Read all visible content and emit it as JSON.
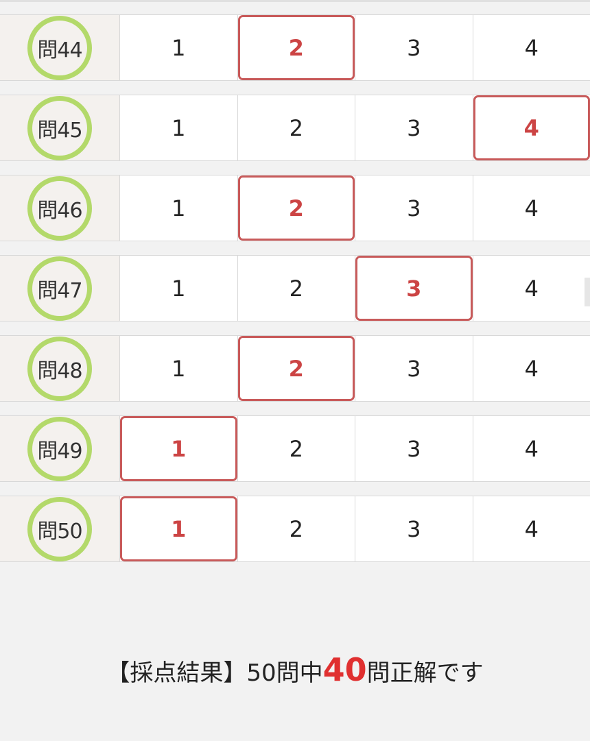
{
  "questions": [
    {
      "label": "問44",
      "options": [
        "1",
        "2",
        "3",
        "4"
      ],
      "selected": 2
    },
    {
      "label": "問45",
      "options": [
        "1",
        "2",
        "3",
        "4"
      ],
      "selected": 4
    },
    {
      "label": "問46",
      "options": [
        "1",
        "2",
        "3",
        "4"
      ],
      "selected": 2
    },
    {
      "label": "問47",
      "options": [
        "1",
        "2",
        "3",
        "4"
      ],
      "selected": 3
    },
    {
      "label": "問48",
      "options": [
        "1",
        "2",
        "3",
        "4"
      ],
      "selected": 2
    },
    {
      "label": "問49",
      "options": [
        "1",
        "2",
        "3",
        "4"
      ],
      "selected": 1
    },
    {
      "label": "問50",
      "options": [
        "1",
        "2",
        "3",
        "4"
      ],
      "selected": 1
    }
  ],
  "result": {
    "prefix": "【採点結果】50問中",
    "correct": "40",
    "suffix": "問正解です"
  },
  "colors": {
    "selected_border": "#c85a5a",
    "correct_circle": "#b3d96a",
    "score": "#e03030"
  }
}
